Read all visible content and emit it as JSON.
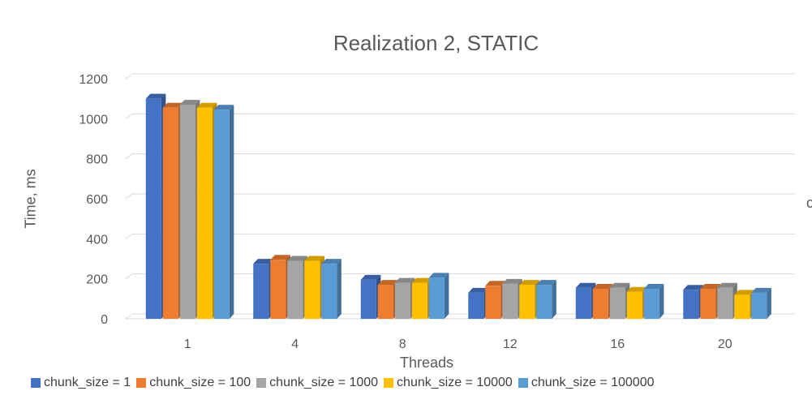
{
  "chart_data": {
    "type": "bar",
    "title": "Realization 2, STATIC",
    "xlabel": "Threads",
    "ylabel": "Time, ms",
    "categories": [
      "1",
      "4",
      "8",
      "12",
      "16",
      "20"
    ],
    "ylim": [
      0,
      1200
    ],
    "yticks": [
      0,
      200,
      400,
      600,
      800,
      1000,
      1200
    ],
    "grid": true,
    "legend_position": "bottom",
    "style": "3d-clustered-column",
    "series": [
      {
        "name": "chunk_size = 1",
        "color": "#4472C4",
        "values": [
          1100,
          275,
          195,
          130,
          155,
          145
        ]
      },
      {
        "name": "chunk_size = 100",
        "color": "#ED7D31",
        "values": [
          1055,
          295,
          170,
          165,
          150,
          150
        ]
      },
      {
        "name": "chunk_size = 1000",
        "color": "#A5A5A5",
        "values": [
          1070,
          290,
          180,
          175,
          155,
          155
        ]
      },
      {
        "name": "chunk_size = 10000",
        "color": "#FFC000",
        "values": [
          1055,
          290,
          180,
          170,
          135,
          120
        ]
      },
      {
        "name": "chunk_size = 100000",
        "color": "#5B9BD5",
        "values": [
          1045,
          275,
          205,
          170,
          150,
          130
        ]
      }
    ]
  },
  "stray_glyph": "c"
}
